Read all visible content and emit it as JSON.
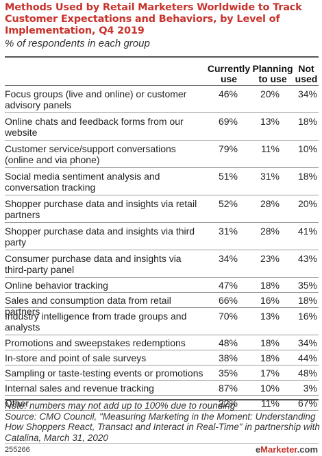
{
  "chart_data": {
    "type": "table",
    "title": "Methods Used by Retail Marketers Worldwide to Track Customer Expectations and Behaviors, by Level of Implementation, Q4 2019",
    "subtitle": "% of respondents in each group",
    "columns": [
      "Currently use",
      "Planning to use",
      "Not used"
    ],
    "rows": [
      {
        "label": "Focus groups (live and online) or customer advisory panels",
        "values": [
          "46%",
          "20%",
          "34%"
        ]
      },
      {
        "label": "Online chats and feedback forms from our website",
        "values": [
          "69%",
          "13%",
          "18%"
        ]
      },
      {
        "label": "Customer service/support conversations (online and via phone)",
        "values": [
          "79%",
          "11%",
          "10%"
        ]
      },
      {
        "label": "Social media sentiment analysis and conversation tracking",
        "values": [
          "51%",
          "31%",
          "18%"
        ]
      },
      {
        "label": "Shopper purchase data and insights via retail partners",
        "values": [
          "52%",
          "28%",
          "20%"
        ]
      },
      {
        "label": "Shopper purchase data and insights via third party",
        "values": [
          "31%",
          "28%",
          "41%"
        ]
      },
      {
        "label": "Consumer purchase data and insights via third-party panel",
        "values": [
          "34%",
          "23%",
          "43%"
        ]
      },
      {
        "label": "Online behavior tracking",
        "values": [
          "47%",
          "18%",
          "35%"
        ]
      },
      {
        "label": "Sales and consumption data from retail partners",
        "values": [
          "66%",
          "16%",
          "18%"
        ]
      },
      {
        "label": "Industry intelligence from trade groups and analysts",
        "values": [
          "70%",
          "13%",
          "16%"
        ]
      },
      {
        "label": "Promotions and sweepstakes redemptions",
        "values": [
          "48%",
          "18%",
          "34%"
        ]
      },
      {
        "label": "In-store and point of sale surveys",
        "values": [
          "38%",
          "18%",
          "44%"
        ]
      },
      {
        "label": "Sampling or taste-testing events or promotions",
        "values": [
          "35%",
          "17%",
          "48%"
        ]
      },
      {
        "label": "Internal sales and revenue tracking",
        "values": [
          "87%",
          "10%",
          "3%"
        ]
      },
      {
        "label": "Other",
        "values": [
          "22%",
          "11%",
          "67%"
        ]
      }
    ],
    "note": "Note: numbers may not add up to 100% due to rounding",
    "source": "Source: CMO Council, \"Measuring Marketing in the Moment: Understanding How Shoppers React, Transact and Interact in Real-Time\" in partnership with Catalina, March 31, 2020"
  },
  "footer": {
    "id": "255266",
    "brand_prefix": "e",
    "brand_name": "Marketer",
    "brand_suffix": ".com"
  },
  "colors": {
    "title": "#c8332c",
    "text": "#222222",
    "rule": "#555555"
  }
}
